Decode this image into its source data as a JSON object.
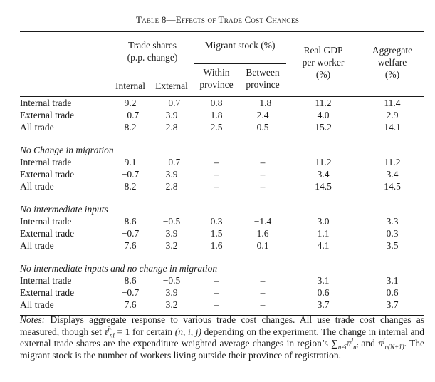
{
  "title": "Table 8—Effects of Trade Cost Changes",
  "headers": {
    "trade_shares": "Trade shares",
    "trade_shares_unit": "(p.p. change)",
    "internal": "Internal",
    "external": "External",
    "migrant_stock": "Migrant stock (%)",
    "within": "Within",
    "between": "Between",
    "province1": "province",
    "province2": "province",
    "real_gdp": "Real GDP",
    "per_worker": "per worker",
    "gdp_unit": "(%)",
    "aggregate": "Aggregate",
    "welfare": "welfare",
    "welfare_unit": "(%)"
  },
  "sections": [
    {
      "heading": "",
      "rows": [
        {
          "label": "Internal trade",
          "cells": [
            "9.2",
            "−0.7",
            "0.8",
            "−1.8",
            "11.2",
            "11.4"
          ]
        },
        {
          "label": "External trade",
          "cells": [
            "−0.7",
            "3.9",
            "1.8",
            "2.4",
            "4.0",
            "2.9"
          ]
        },
        {
          "label": "All trade",
          "cells": [
            "8.2",
            "2.8",
            "2.5",
            "0.5",
            "15.2",
            "14.1"
          ]
        }
      ]
    },
    {
      "heading": "No Change in migration",
      "rows": [
        {
          "label": "Internal trade",
          "cells": [
            "9.1",
            "−0.7",
            "–",
            "–",
            "11.2",
            "11.2"
          ]
        },
        {
          "label": "External trade",
          "cells": [
            "−0.7",
            "3.9",
            "–",
            "–",
            "3.4",
            "3.4"
          ]
        },
        {
          "label": "All trade",
          "cells": [
            "8.2",
            "2.8",
            "–",
            "–",
            "14.5",
            "14.5"
          ]
        }
      ]
    },
    {
      "heading": "No intermediate inputs",
      "rows": [
        {
          "label": "Internal trade",
          "cells": [
            "8.6",
            "−0.5",
            "0.3",
            "−1.4",
            "3.0",
            "3.3"
          ]
        },
        {
          "label": "External trade",
          "cells": [
            "−0.7",
            "3.9",
            "1.5",
            "1.6",
            "1.1",
            "0.3"
          ]
        },
        {
          "label": "All trade",
          "cells": [
            "7.6",
            "3.2",
            "1.6",
            "0.1",
            "4.1",
            "3.5"
          ]
        }
      ]
    },
    {
      "heading": "No intermediate inputs and no change in migration",
      "rows": [
        {
          "label": "Internal trade",
          "cells": [
            "8.6",
            "−0.5",
            "–",
            "–",
            "3.1",
            "3.1"
          ]
        },
        {
          "label": "External trade",
          "cells": [
            "−0.7",
            "3.9",
            "–",
            "–",
            "0.6",
            "0.6"
          ]
        },
        {
          "label": "All trade",
          "cells": [
            "7.6",
            "3.2",
            "–",
            "–",
            "3.7",
            "3.7"
          ]
        }
      ]
    }
  ],
  "notes": {
    "label": "Notes:",
    "text1": "Displays aggregate response to various trade cost changes. All use trade cost changes as measured, though set",
    "math_tau": "τ̂",
    "math_tau_sub": "ni",
    "math_tau_sup": "j",
    "text2": "= 1 for certain",
    "math_tuple": "(n, i, j)",
    "text3": "depending on the experiment. The change in internal and external trade shares are the expenditure weighted average changes in region’s",
    "math_sum": "∑",
    "math_sum_sub": "n≠i",
    "math_pi1": "π",
    "math_pi1_sub": "ni",
    "math_pi1_sup": "j",
    "text4": "and",
    "math_pi2": "π",
    "math_pi2_sub": "n(N+1)",
    "math_pi2_sup": "j",
    "text5": ". The migrant stock is the number of workers living outside their province of registration."
  }
}
